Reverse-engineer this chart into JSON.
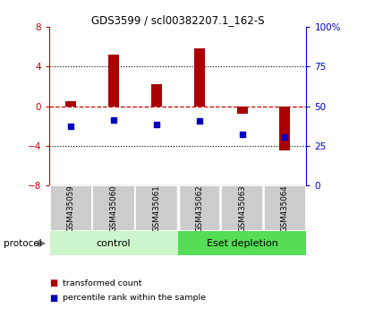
{
  "title": "GDS3599 / scl00382207.1_162-S",
  "samples": [
    "GSM435059",
    "GSM435060",
    "GSM435061",
    "GSM435062",
    "GSM435063",
    "GSM435064"
  ],
  "red_values": [
    0.5,
    5.2,
    2.2,
    5.8,
    -0.8,
    -4.5
  ],
  "blue_values": [
    -2.0,
    -1.4,
    -1.8,
    -1.5,
    -2.8,
    -3.1
  ],
  "ylim": [
    -8,
    8
  ],
  "yticks_left": [
    -8,
    -4,
    0,
    4,
    8
  ],
  "yticks_right": [
    0,
    25,
    50,
    75,
    100
  ],
  "groups": [
    {
      "label": "control",
      "color_light": "#ccf5cc",
      "color_dark": "#55dd55",
      "start": 0,
      "end": 3
    },
    {
      "label": "Eset depletion",
      "color_light": "#55dd55",
      "color_dark": "#55dd55",
      "start": 3,
      "end": 6
    }
  ],
  "protocol_label": "protocol",
  "bar_width": 0.25,
  "red_color": "#aa0000",
  "blue_color": "#0000bb",
  "hline_color": "#cc0000",
  "dotted_color": "#000000",
  "sample_box_color": "#cccccc",
  "left_axis_color": "#cc0000",
  "right_axis_color": "#0000cc",
  "legend_items": [
    {
      "label": "transformed count",
      "color": "#aa0000"
    },
    {
      "label": "percentile rank within the sample",
      "color": "#0000bb"
    }
  ]
}
